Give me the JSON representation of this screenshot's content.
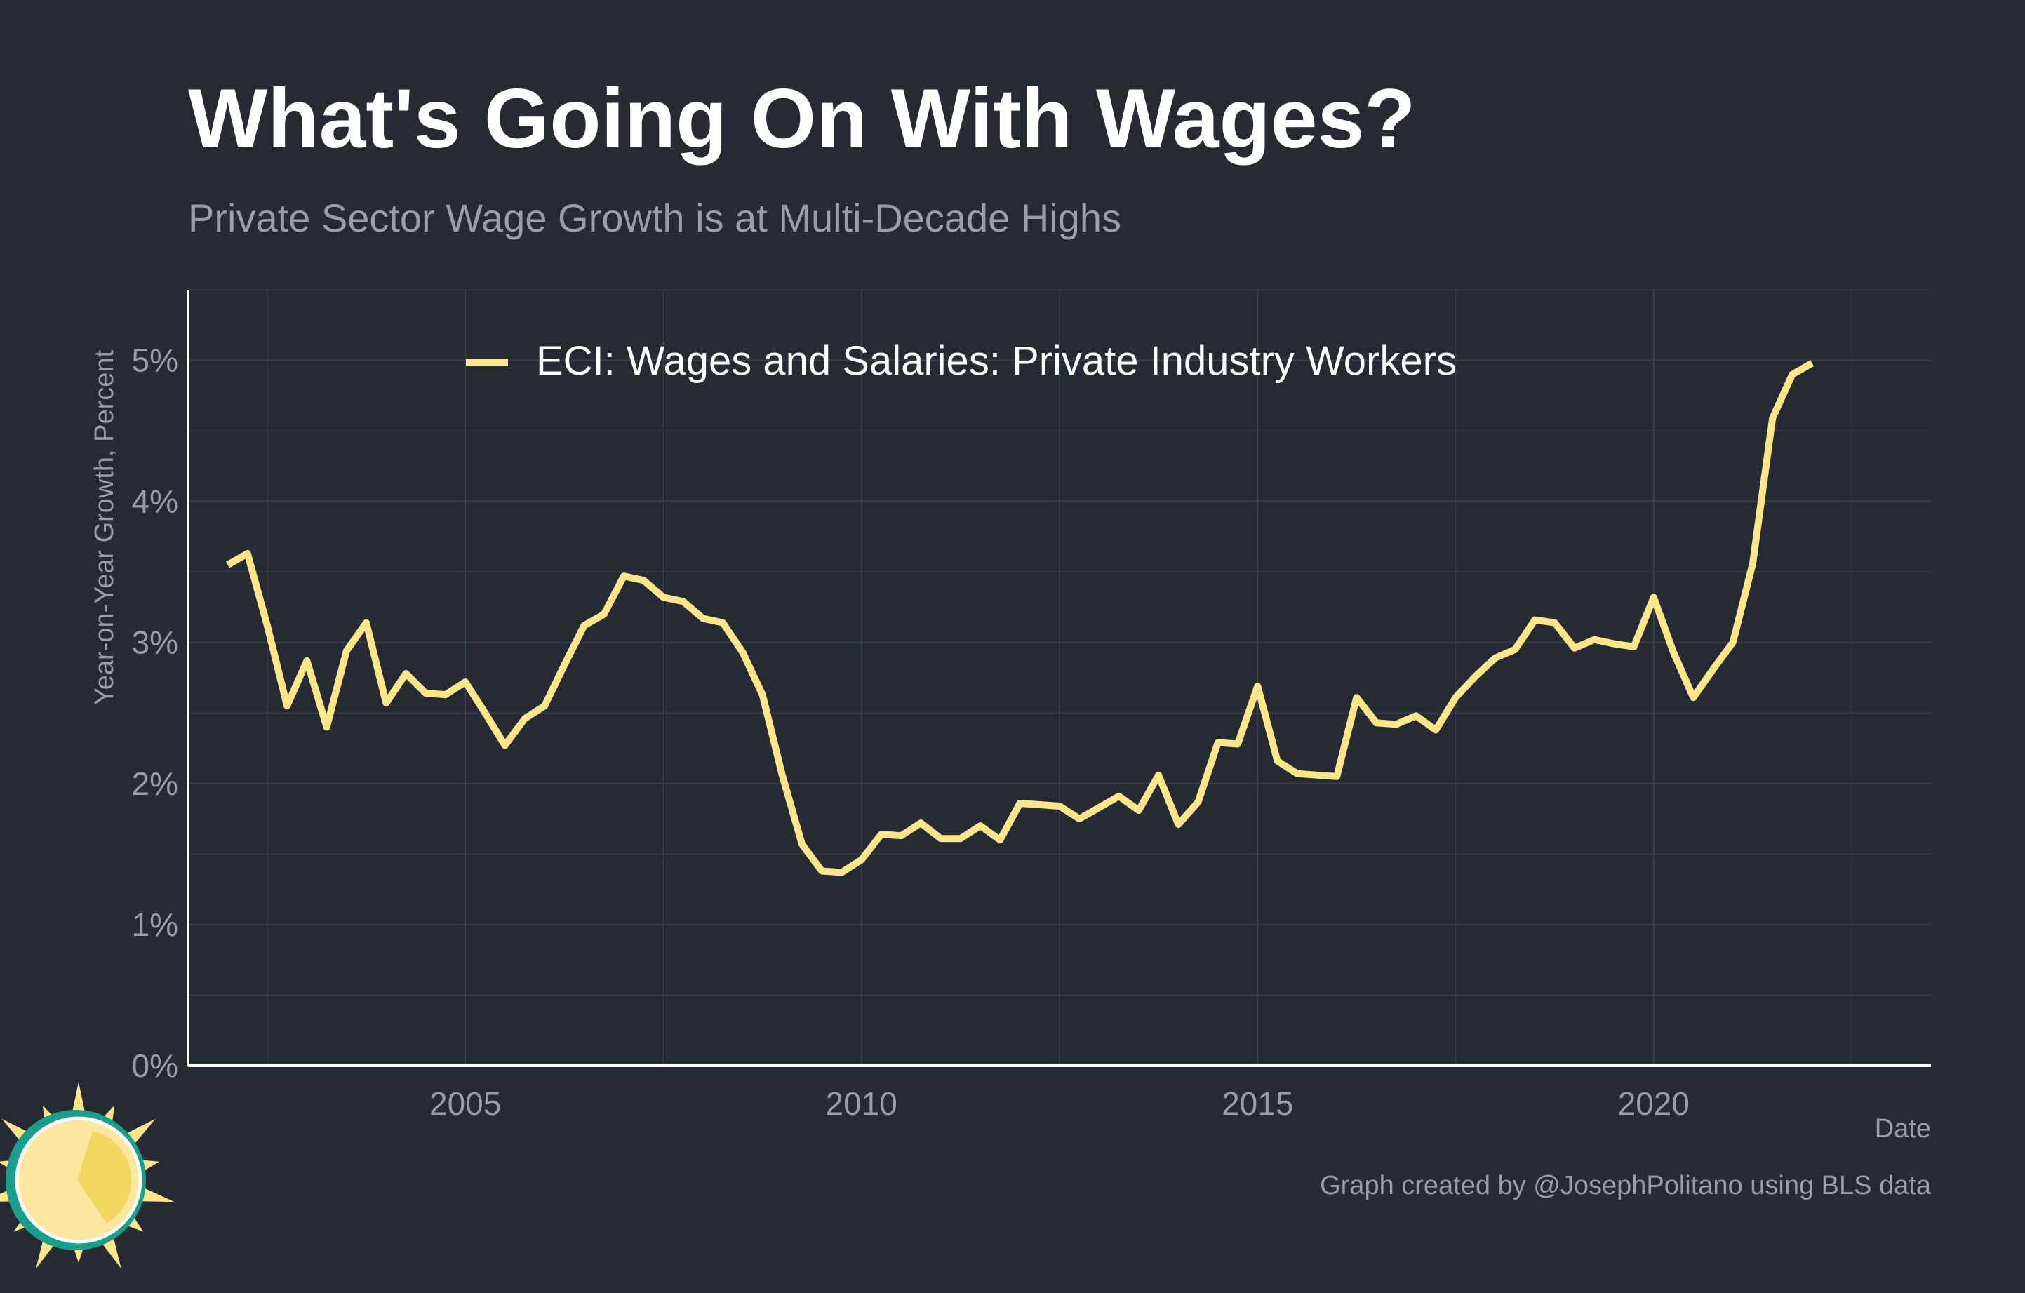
{
  "chart_data": {
    "type": "line",
    "title": "What's Going On With Wages?",
    "subtitle": "Private Sector Wage Growth is at Multi-Decade Highs",
    "xlabel": "Date",
    "ylabel": "Year-on-Year Growth, Percent",
    "caption": "Graph created by @JosephPolitano using BLS data",
    "ylim": [
      0,
      5.5
    ],
    "xlim": [
      2001.5,
      2023.5
    ],
    "y_ticks": [
      0,
      1,
      2,
      3,
      4,
      5
    ],
    "y_tick_labels": [
      "0%",
      "1%",
      "2%",
      "3%",
      "4%",
      "5%"
    ],
    "x_ticks": [
      2005,
      2010,
      2015,
      2020
    ],
    "x_tick_labels": [
      "2005",
      "2010",
      "2015",
      "2020"
    ],
    "grid": true,
    "legend_position": "top",
    "colors": {
      "background": "#252a33",
      "line": "#fde68a",
      "grid": "#3a404a",
      "axis": "#ffffff",
      "title": "#ffffff",
      "subtitle": "#9a9ea6",
      "tick_label": "#9a9ea6",
      "legend_text": "#ffffff",
      "logo_sun": "#fde68a",
      "logo_ring": "#1a9e8c"
    },
    "series": [
      {
        "name": "ECI: Wages and Salaries: Private Industry Workers",
        "x": [
          2002.0,
          2002.25,
          2002.5,
          2002.75,
          2003.0,
          2003.25,
          2003.5,
          2003.75,
          2004.0,
          2004.25,
          2004.5,
          2004.75,
          2005.0,
          2005.25,
          2005.5,
          2005.75,
          2006.0,
          2006.25,
          2006.5,
          2006.75,
          2007.0,
          2007.25,
          2007.5,
          2007.75,
          2008.0,
          2008.25,
          2008.5,
          2008.75,
          2009.0,
          2009.25,
          2009.5,
          2009.75,
          2010.0,
          2010.25,
          2010.5,
          2010.75,
          2011.0,
          2011.25,
          2011.5,
          2011.75,
          2012.0,
          2012.25,
          2012.5,
          2012.75,
          2013.0,
          2013.25,
          2013.5,
          2013.75,
          2014.0,
          2014.25,
          2014.5,
          2014.75,
          2015.0,
          2015.25,
          2015.5,
          2015.75,
          2016.0,
          2016.25,
          2016.5,
          2016.75,
          2017.0,
          2017.25,
          2017.5,
          2017.75,
          2018.0,
          2018.25,
          2018.5,
          2018.75,
          2019.0,
          2019.25,
          2019.5,
          2019.75,
          2020.0,
          2020.25,
          2020.5,
          2020.75,
          2021.0,
          2021.25,
          2021.5,
          2021.75,
          2022.0
        ],
        "y": [
          3.55,
          3.63,
          3.12,
          2.55,
          2.87,
          2.4,
          2.94,
          3.14,
          2.57,
          2.78,
          2.64,
          2.63,
          2.72,
          2.5,
          2.27,
          2.46,
          2.55,
          2.84,
          3.12,
          3.2,
          3.47,
          3.44,
          3.32,
          3.29,
          3.17,
          3.14,
          2.93,
          2.63,
          2.06,
          1.57,
          1.38,
          1.37,
          1.46,
          1.64,
          1.63,
          1.72,
          1.61,
          1.61,
          1.7,
          1.6,
          1.86,
          1.85,
          1.84,
          1.75,
          1.83,
          1.91,
          1.81,
          2.06,
          1.71,
          1.87,
          2.29,
          2.28,
          2.69,
          2.16,
          2.07,
          2.06,
          2.05,
          2.61,
          2.43,
          2.42,
          2.48,
          2.38,
          2.61,
          2.76,
          2.89,
          2.95,
          3.16,
          3.14,
          2.96,
          3.02,
          2.99,
          2.97,
          3.32,
          2.93,
          2.61,
          2.81,
          3.0,
          3.56,
          4.59,
          4.9,
          4.98
        ]
      }
    ]
  },
  "logo": {
    "name": "sun-logo"
  }
}
